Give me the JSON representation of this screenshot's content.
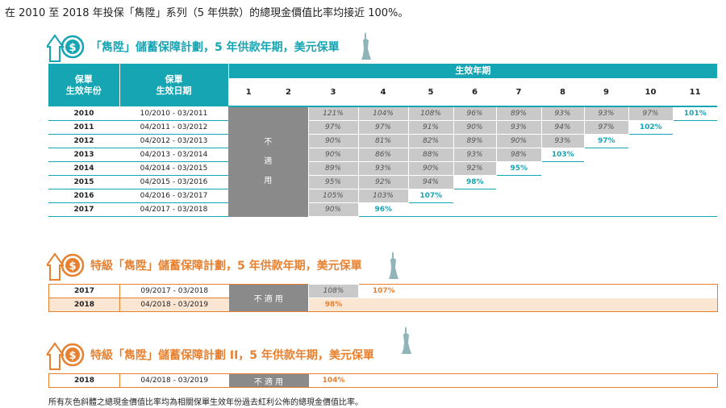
{
  "headline": "在 2010 至 2018 年投保「雋陞」系列（5 年供款）的總現金價值比率均接近 100%。",
  "section1": {
    "title": "「雋陞」儲蓄保障計劃，5 年供款年期，美元保單",
    "col_year": "保單\n生效年份",
    "col_period": "保單\n生效日期",
    "policy_years_header": "生效年期",
    "policy_years": [
      "1",
      "2",
      "3",
      "4",
      "5",
      "6",
      "7",
      "8",
      "9",
      "10",
      "11"
    ],
    "na_label": [
      "不",
      "適",
      "用"
    ],
    "rows": [
      {
        "year": "2010",
        "period": "10/2010 - 03/2011",
        "values": [
          "121%",
          "104%",
          "108%",
          "96%",
          "89%",
          "93%",
          "93%",
          "97%"
        ],
        "latest": "101%"
      },
      {
        "year": "2011",
        "period": "04/2011 - 03/2012",
        "values": [
          "97%",
          "97%",
          "91%",
          "90%",
          "93%",
          "94%",
          "97%"
        ],
        "latest": "102%"
      },
      {
        "year": "2012",
        "period": "04/2012 - 03/2013",
        "values": [
          "90%",
          "81%",
          "82%",
          "89%",
          "90%",
          "93%"
        ],
        "latest": "97%"
      },
      {
        "year": "2013",
        "period": "04/2013 - 03/2014",
        "values": [
          "90%",
          "86%",
          "88%",
          "93%",
          "98%"
        ],
        "latest": "103%"
      },
      {
        "year": "2014",
        "period": "04/2014 - 03/2015",
        "values": [
          "89%",
          "93%",
          "90%",
          "92%"
        ],
        "latest": "95%"
      },
      {
        "year": "2015",
        "period": "04/2015 - 03/2016",
        "values": [
          "95%",
          "92%",
          "94%"
        ],
        "latest": "98%"
      },
      {
        "year": "2016",
        "period": "04/2016 - 03/2017",
        "values": [
          "105%",
          "103%"
        ],
        "latest": "107%"
      },
      {
        "year": "2017",
        "period": "04/2017 - 03/2018",
        "values": [
          "90%"
        ],
        "latest": "96%"
      }
    ]
  },
  "section2": {
    "title": "特級「雋陞」儲蓄保障計劃，5 年供款年期，美元保單",
    "na_label": "不 適 用",
    "rows": [
      {
        "year": "2017",
        "period": "09/2017 - 03/2018",
        "values": [
          "108%"
        ],
        "latest": "107%"
      },
      {
        "year": "2018",
        "period": "04/2018 - 03/2019",
        "values": [],
        "latest": "98%"
      }
    ]
  },
  "section3": {
    "title": "特級「雋陞」儲蓄保障計劃 II，5 年供款年期，美元保單",
    "na_label": "不 適 用",
    "rows": [
      {
        "year": "2018",
        "period": "04/2018 - 03/2019",
        "values": [],
        "latest": "104%"
      }
    ]
  },
  "footnote": "所有灰色斜體之總現金價值比率均為相關保單生效年份過去紅利公佈的總現金價值比率。",
  "colors": {
    "teal": "#16a5b3",
    "orange": "#e8812f",
    "gray_cell": "#c9c9c9",
    "na": "#8a8a8a"
  }
}
